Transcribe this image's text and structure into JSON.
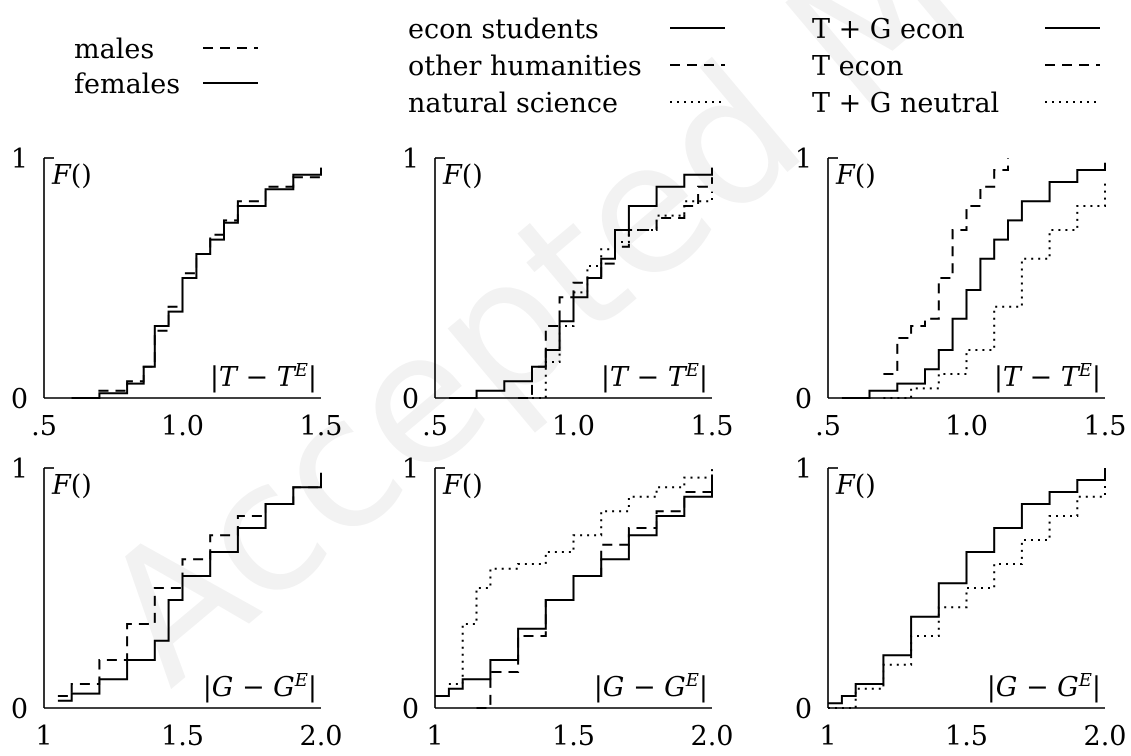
{
  "watermark": {
    "text": "Accepted Manuscript",
    "color": "#e6e6e6"
  },
  "colors": {
    "ink": "#000000",
    "background": "#ffffff"
  },
  "legends": [
    {
      "group": "gender",
      "entries": [
        {
          "label": "males",
          "style": "dashed"
        },
        {
          "label": "females",
          "style": "solid"
        }
      ]
    },
    {
      "group": "field",
      "entries": [
        {
          "label": "econ students",
          "style": "solid"
        },
        {
          "label": "other humanities",
          "style": "dashed"
        },
        {
          "label": "natural science",
          "style": "dotted"
        }
      ]
    },
    {
      "group": "treatment",
      "entries": [
        {
          "label": "T + G econ",
          "style": "solid"
        },
        {
          "label": "T econ",
          "style": "dashed"
        },
        {
          "label": "T + G neutral",
          "style": "dotted"
        }
      ]
    }
  ],
  "chart_data": [
    {
      "type": "line",
      "panel_row": 1,
      "panel_col": 1,
      "ylabel": "F()",
      "annotation": "|T − T^E|",
      "x_ticks": [
        ".5",
        "1.0",
        "1.5"
      ],
      "y_ticks": [
        "0",
        "1"
      ],
      "xlim": [
        0.5,
        1.5
      ],
      "ylim": [
        0,
        1
      ],
      "series": [
        {
          "name": "males",
          "style": "dashed",
          "x": [
            0.6,
            0.7,
            0.8,
            0.86,
            0.9,
            0.95,
            1.0,
            1.05,
            1.1,
            1.15,
            1.2,
            1.3,
            1.4,
            1.5
          ],
          "y": [
            0.0,
            0.03,
            0.07,
            0.13,
            0.28,
            0.38,
            0.52,
            0.6,
            0.68,
            0.74,
            0.82,
            0.88,
            0.92,
            0.95
          ]
        },
        {
          "name": "females",
          "style": "solid",
          "x": [
            0.6,
            0.7,
            0.8,
            0.86,
            0.9,
            0.95,
            1.0,
            1.05,
            1.1,
            1.15,
            1.2,
            1.3,
            1.4,
            1.5
          ],
          "y": [
            0.0,
            0.02,
            0.06,
            0.13,
            0.3,
            0.36,
            0.5,
            0.6,
            0.66,
            0.73,
            0.8,
            0.87,
            0.93,
            0.96
          ]
        }
      ]
    },
    {
      "type": "line",
      "panel_row": 1,
      "panel_col": 2,
      "ylabel": "F()",
      "annotation": "|T − T^E|",
      "x_ticks": [
        ".5",
        "1.0",
        "1.5"
      ],
      "y_ticks": [
        "0",
        "1"
      ],
      "xlim": [
        0.5,
        1.5
      ],
      "ylim": [
        0,
        1
      ],
      "series": [
        {
          "name": "econ students",
          "style": "solid",
          "x": [
            0.55,
            0.65,
            0.75,
            0.85,
            0.9,
            0.95,
            1.0,
            1.05,
            1.1,
            1.15,
            1.2,
            1.3,
            1.4,
            1.5
          ],
          "y": [
            0.0,
            0.03,
            0.07,
            0.13,
            0.2,
            0.32,
            0.42,
            0.5,
            0.58,
            0.7,
            0.8,
            0.88,
            0.93,
            0.96
          ]
        },
        {
          "name": "other humanities",
          "style": "dashed",
          "x": [
            0.8,
            0.85,
            0.9,
            0.95,
            1.0,
            1.05,
            1.1,
            1.15,
            1.2,
            1.3,
            1.4,
            1.45,
            1.5
          ],
          "y": [
            0.0,
            0.13,
            0.3,
            0.42,
            0.48,
            0.5,
            0.56,
            0.63,
            0.7,
            0.75,
            0.8,
            0.88,
            0.92
          ]
        },
        {
          "name": "natural science",
          "style": "dotted",
          "x": [
            0.85,
            0.9,
            0.95,
            1.0,
            1.05,
            1.1,
            1.15,
            1.2,
            1.3,
            1.4,
            1.5
          ],
          "y": [
            0.0,
            0.15,
            0.3,
            0.44,
            0.55,
            0.62,
            0.65,
            0.7,
            0.76,
            0.82,
            0.86
          ]
        }
      ]
    },
    {
      "type": "line",
      "panel_row": 1,
      "panel_col": 3,
      "ylabel": "F()",
      "annotation": "|T − T^E|",
      "x_ticks": [
        ".5",
        "1.0",
        "1.5"
      ],
      "y_ticks": [
        "0",
        "1"
      ],
      "xlim": [
        0.5,
        1.5
      ],
      "ylim": [
        0,
        1
      ],
      "series": [
        {
          "name": "T + G econ",
          "style": "solid",
          "x": [
            0.55,
            0.65,
            0.75,
            0.85,
            0.9,
            0.95,
            1.0,
            1.05,
            1.1,
            1.15,
            1.2,
            1.3,
            1.4,
            1.5
          ],
          "y": [
            0.0,
            0.03,
            0.06,
            0.12,
            0.2,
            0.33,
            0.45,
            0.58,
            0.66,
            0.74,
            0.82,
            0.9,
            0.95,
            0.98
          ]
        },
        {
          "name": "T econ",
          "style": "dashed",
          "x": [
            0.7,
            0.75,
            0.8,
            0.85,
            0.9,
            0.95,
            1.0,
            1.05,
            1.1,
            1.15
          ],
          "y": [
            0.1,
            0.25,
            0.3,
            0.33,
            0.5,
            0.7,
            0.8,
            0.88,
            0.95,
            1.0
          ]
        },
        {
          "name": "T + G neutral",
          "style": "dotted",
          "x": [
            0.7,
            0.8,
            0.9,
            1.0,
            1.1,
            1.2,
            1.3,
            1.4,
            1.5
          ],
          "y": [
            0.0,
            0.04,
            0.1,
            0.2,
            0.38,
            0.58,
            0.7,
            0.8,
            0.9
          ]
        }
      ]
    },
    {
      "type": "line",
      "panel_row": 2,
      "panel_col": 1,
      "ylabel": "F()",
      "annotation": "|G − G^E|",
      "x_ticks": [
        "1",
        "1.5",
        "2.0"
      ],
      "y_ticks": [
        "0",
        "1"
      ],
      "xlim": [
        1.0,
        2.0
      ],
      "ylim": [
        0,
        1
      ],
      "series": [
        {
          "name": "males",
          "style": "dashed",
          "x": [
            1.05,
            1.1,
            1.2,
            1.3,
            1.4,
            1.5,
            1.6,
            1.7,
            1.8,
            1.9,
            2.0
          ],
          "y": [
            0.05,
            0.1,
            0.2,
            0.35,
            0.5,
            0.62,
            0.72,
            0.8,
            0.85,
            0.92,
            1.0
          ]
        },
        {
          "name": "females",
          "style": "solid",
          "x": [
            1.05,
            1.1,
            1.2,
            1.3,
            1.4,
            1.45,
            1.5,
            1.6,
            1.7,
            1.8,
            1.9,
            2.0
          ],
          "y": [
            0.03,
            0.06,
            0.12,
            0.2,
            0.28,
            0.45,
            0.55,
            0.65,
            0.75,
            0.85,
            0.92,
            0.98
          ]
        }
      ]
    },
    {
      "type": "line",
      "panel_row": 2,
      "panel_col": 2,
      "ylabel": "F()",
      "annotation": "|G − G^E|",
      "x_ticks": [
        "1",
        "1.5",
        "2.0"
      ],
      "y_ticks": [
        "0",
        "1"
      ],
      "xlim": [
        1.0,
        2.0
      ],
      "ylim": [
        0,
        1
      ],
      "series": [
        {
          "name": "econ students",
          "style": "solid",
          "x": [
            1.0,
            1.05,
            1.1,
            1.2,
            1.3,
            1.4,
            1.5,
            1.6,
            1.7,
            1.8,
            1.9,
            2.0
          ],
          "y": [
            0.05,
            0.08,
            0.12,
            0.2,
            0.33,
            0.45,
            0.55,
            0.62,
            0.72,
            0.8,
            0.88,
            0.95
          ]
        },
        {
          "name": "other humanities",
          "style": "dashed",
          "x": [
            1.15,
            1.2,
            1.3,
            1.4,
            1.5,
            1.6,
            1.7,
            1.8,
            1.9,
            2.0
          ],
          "y": [
            0.0,
            0.15,
            0.3,
            0.45,
            0.55,
            0.68,
            0.75,
            0.82,
            0.9,
            1.0
          ]
        },
        {
          "name": "natural science",
          "style": "dotted",
          "x": [
            1.05,
            1.1,
            1.15,
            1.2,
            1.3,
            1.4,
            1.5,
            1.6,
            1.7,
            1.8,
            1.9,
            2.0
          ],
          "y": [
            0.1,
            0.35,
            0.5,
            0.58,
            0.6,
            0.65,
            0.72,
            0.82,
            0.88,
            0.92,
            0.96,
            1.0
          ]
        }
      ]
    },
    {
      "type": "line",
      "panel_row": 2,
      "panel_col": 3,
      "ylabel": "F()",
      "annotation": "|G − G^E|",
      "x_ticks": [
        "1",
        "1.5",
        "2.0"
      ],
      "y_ticks": [
        "0",
        "1"
      ],
      "xlim": [
        1.0,
        2.0
      ],
      "ylim": [
        0,
        1
      ],
      "series": [
        {
          "name": "T + G econ",
          "style": "solid",
          "x": [
            1.0,
            1.05,
            1.1,
            1.2,
            1.3,
            1.4,
            1.5,
            1.6,
            1.7,
            1.8,
            1.9,
            2.0
          ],
          "y": [
            0.02,
            0.05,
            0.1,
            0.22,
            0.38,
            0.52,
            0.65,
            0.75,
            0.85,
            0.9,
            0.95,
            1.0
          ]
        },
        {
          "name": "T + G neutral",
          "style": "dotted",
          "x": [
            1.0,
            1.1,
            1.2,
            1.3,
            1.4,
            1.5,
            1.6,
            1.7,
            1.8,
            1.9,
            2.0
          ],
          "y": [
            0.0,
            0.08,
            0.18,
            0.3,
            0.42,
            0.5,
            0.6,
            0.7,
            0.8,
            0.88,
            0.98
          ]
        }
      ]
    }
  ]
}
